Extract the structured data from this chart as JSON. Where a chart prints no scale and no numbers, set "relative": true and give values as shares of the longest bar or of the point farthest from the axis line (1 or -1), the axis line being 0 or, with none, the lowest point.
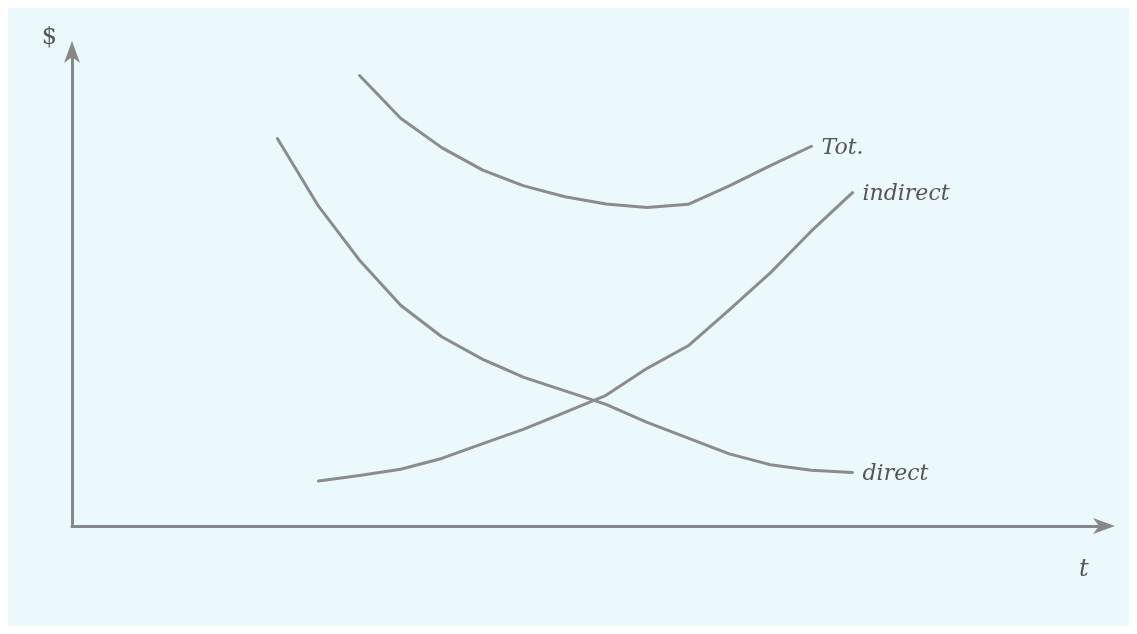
{
  "chart_data": {
    "type": "line",
    "relative": true,
    "xlabel": "t",
    "ylabel": "$",
    "grid": false,
    "legend": false,
    "marker": "none",
    "line_style": "solid",
    "categories": [
      null,
      null,
      null,
      null,
      null,
      null,
      null,
      null,
      null,
      null,
      null,
      null,
      null,
      null,
      null,
      null,
      null,
      null,
      null,
      null,
      null,
      null,
      null,
      null,
      null,
      null
    ],
    "series": [
      {
        "name": "Tot.",
        "color": "#8c8c8c",
        "values": [
          null,
          null,
          null,
          null,
          null,
          null,
          null,
          1.0,
          0.905,
          0.84,
          0.79,
          0.755,
          0.731,
          0.715,
          0.707,
          0.714,
          0.755,
          0.8,
          0.843,
          null,
          null,
          null,
          null,
          null,
          null,
          null
        ]
      },
      {
        "name": "indirect",
        "color": "#8c8c8c",
        "values": [
          null,
          null,
          null,
          null,
          null,
          null,
          0.1,
          0.112,
          0.126,
          0.15,
          0.183,
          0.215,
          0.252,
          0.29,
          0.35,
          0.4,
          0.48,
          0.562,
          0.655,
          0.74,
          null,
          null,
          null,
          null,
          null,
          null
        ]
      },
      {
        "name": "direct",
        "color": "#8c8c8c",
        "values": [
          null,
          null,
          null,
          null,
          null,
          0.86,
          0.71,
          0.59,
          0.49,
          0.42,
          0.37,
          0.33,
          0.3,
          0.27,
          0.23,
          0.195,
          0.16,
          0.136,
          0.124,
          0.119,
          null,
          null,
          null,
          null,
          null,
          null
        ]
      }
    ]
  }
}
